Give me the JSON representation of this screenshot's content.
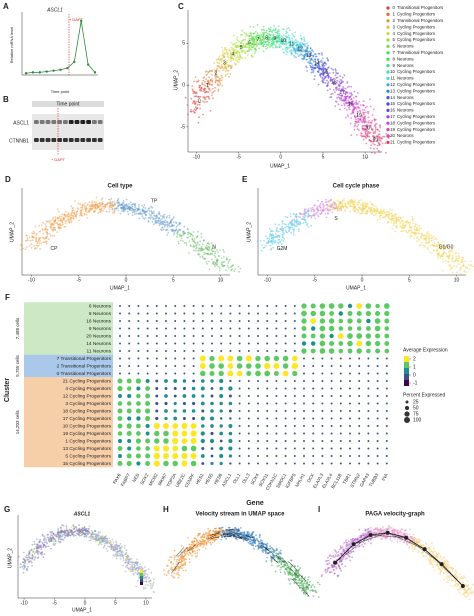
{
  "a": {
    "label": "A",
    "title": "ASCL1",
    "annotation": "+ DAPT",
    "x_title": "Time point",
    "y_title": "Relative mRNA level",
    "values": [
      0.2,
      0.3,
      0.3,
      0.4,
      0.5,
      0.6,
      0.8,
      1.5,
      6.2,
      1.2,
      0.3
    ],
    "ylim": [
      0,
      7
    ]
  },
  "b": {
    "label": "B",
    "header": "Time point",
    "rows": [
      "ASCL1",
      "CTNNB1"
    ],
    "annotation": "+ DAPT"
  },
  "c": {
    "label": "C",
    "x_title": "UMAP_1",
    "y_title": "UMAP_2",
    "xticks": [
      -10,
      -5,
      0,
      5,
      10
    ],
    "xlim": [
      -11,
      12
    ],
    "yticks": [
      -5,
      0,
      5
    ],
    "ylim": [
      -8,
      9
    ],
    "clusters": [
      {
        "id": "0",
        "name": "Transitional Progenitors"
      },
      {
        "id": "1",
        "name": "Cycling Progenitors"
      },
      {
        "id": "2",
        "name": "Transitional Progenitors"
      },
      {
        "id": "3",
        "name": "Cycling Progenitors"
      },
      {
        "id": "4",
        "name": "Cycling Progenitors"
      },
      {
        "id": "5",
        "name": "Cycling Progenitors"
      },
      {
        "id": "6",
        "name": "Neurons"
      },
      {
        "id": "7",
        "name": "Transitional Progenitors"
      },
      {
        "id": "8",
        "name": "Neurons"
      },
      {
        "id": "9",
        "name": "Neurons"
      },
      {
        "id": "10",
        "name": "Cycling Progenitors"
      },
      {
        "id": "11",
        "name": "Neurons"
      },
      {
        "id": "12",
        "name": "Cycling Progenitors"
      },
      {
        "id": "13",
        "name": "Cycling Progenitors"
      },
      {
        "id": "14",
        "name": "Neurons"
      },
      {
        "id": "15",
        "name": "Cycling Progenitors"
      },
      {
        "id": "16",
        "name": "Neurons"
      },
      {
        "id": "17",
        "name": "Cycling Progenitors"
      },
      {
        "id": "18",
        "name": "Cycling Progenitors"
      },
      {
        "id": "19",
        "name": "Cycling Progenitors"
      },
      {
        "id": "20",
        "name": "Neurons"
      },
      {
        "id": "21",
        "name": "Cycling Progenitors"
      }
    ]
  },
  "d": {
    "label": "D",
    "title": "Cell type",
    "groups": [
      "CP",
      "TP",
      "N"
    ],
    "x_title": "UMAP_1",
    "y_title": "UMAP_2",
    "xticks": [
      -10,
      -5,
      0,
      5,
      10
    ],
    "xlim": [
      -11,
      11
    ]
  },
  "e": {
    "label": "E",
    "title": "Cell cycle phase",
    "groups": [
      "G2M",
      "S",
      "G1/G0"
    ],
    "x_title": "UMAP_1",
    "y_title": "UMAP_2",
    "xticks": [
      -10,
      -5,
      0,
      5,
      10
    ],
    "xlim": [
      -11,
      11
    ]
  },
  "f": {
    "label": "F",
    "y_title": "Cluster",
    "x_title": "Gene",
    "rows": [
      "6 Neurons",
      "8 Neurons",
      "16 Neurons",
      "9 Neurons",
      "20 Neurons",
      "14 Neurons",
      "11 Neurons",
      "7 Transitional Progenitors",
      "2 Transitional Progenitors",
      "0 Transitional Progenitors",
      "21 Cycling Progenitors",
      "4 Cycling Progenitors",
      "12 Cycling Progenitors",
      "3 Cycling Progenitors",
      "18 Cycling Progenitors",
      "17 Cycling Progenitors",
      "10 Cycling Progenitors",
      "19 Cycling Progenitors",
      "1 Cycling Progenitors",
      "13 Cycling Progenitors",
      "5 Cycling Progenitors",
      "15 Cycling Progenitors"
    ],
    "groups": [
      "7,488 cells",
      "5,755 cells",
      "14,203 cells"
    ],
    "genes": [
      "PAX6",
      "FABP7",
      "NES",
      "SOX2",
      "MCM2",
      "MKI67",
      "TOP2A",
      "UBE2C",
      "CENPF",
      "HES1",
      "HES5",
      "HES6",
      "ASCL1",
      "DLL1",
      "DLL3",
      "SOX4",
      "SOX11",
      "CDKN1C",
      "SMOC1",
      "IGFBP5",
      "NHLH1",
      "DCX",
      "ELAVL3",
      "ELAVL4",
      "BCL11B",
      "TBR1",
      "STMN2",
      "GAP43",
      "TUBB3",
      "INA"
    ],
    "color_legend": {
      "title": "Average Expression",
      "ticks": [
        2,
        1,
        0,
        -1
      ]
    },
    "size_legend": {
      "title": "Percent Expressed",
      "ticks": [
        25,
        50,
        75,
        100
      ]
    }
  },
  "g": {
    "label": "G",
    "title": "ASCL1",
    "x_title": "UMAP_1",
    "y_title": "UMAP_2",
    "xticks": [
      -10,
      -5,
      0,
      5,
      10
    ],
    "xlim": [
      -11,
      11
    ]
  },
  "h": {
    "label": "H",
    "title": "Velocity stream in UMAP space"
  },
  "i": {
    "label": "I",
    "title": "PAGA velocity-graph"
  }
}
